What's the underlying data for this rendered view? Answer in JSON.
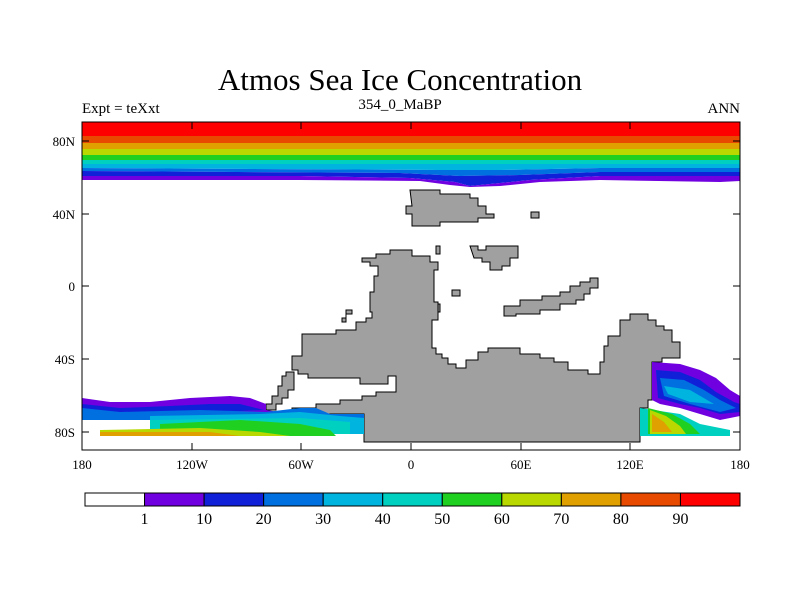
{
  "title": "Atmos Sea Ice Concentration",
  "left_label": "Expt = teXxt",
  "center_label": "354_0_MaBP",
  "right_label": "ANN",
  "map": {
    "y_ticks": [
      "80N",
      "40N",
      "0",
      "40S",
      "80S"
    ],
    "x_ticks": [
      "180",
      "120W",
      "60W",
      "0",
      "60E",
      "120E",
      "180"
    ],
    "land_color": "#a0a0a0",
    "ice_colors": [
      "#ff0000",
      "#e84a00",
      "#e0a000",
      "#b8d800",
      "#20d020",
      "#00d0c0",
      "#00b4e0",
      "#0070e0",
      "#1020d8",
      "#7000e0"
    ]
  },
  "colorbar": {
    "colors": [
      "#ffffff",
      "#7000e0",
      "#1020d8",
      "#0070e0",
      "#00b4e0",
      "#00d0c0",
      "#20d020",
      "#b8d800",
      "#e0a000",
      "#e84a00",
      "#ff0000"
    ],
    "labels": [
      "1",
      "10",
      "20",
      "30",
      "40",
      "50",
      "60",
      "70",
      "80",
      "90"
    ]
  }
}
